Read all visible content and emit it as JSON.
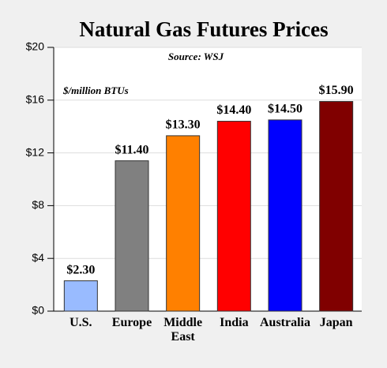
{
  "chart_data": {
    "type": "bar",
    "title": "Natural Gas Futures Prices",
    "subtitle": "Source: WSJ",
    "annotation": "$/million BTUs",
    "categories": [
      "U.S.",
      "Europe",
      "Middle East",
      "India",
      "Australia",
      "Japan"
    ],
    "values": [
      2.3,
      11.4,
      13.3,
      14.4,
      14.5,
      15.9
    ],
    "value_labels": [
      "$2.30",
      "$11.40",
      "$13.30",
      "$14.40",
      "$14.50",
      "$15.90"
    ],
    "colors": [
      "#99bbff",
      "#808080",
      "#ff8000",
      "#ff0000",
      "#0000ff",
      "#800000"
    ],
    "ylim": [
      0,
      20
    ],
    "yticks": [
      {
        "value": 0,
        "label": "$0"
      },
      {
        "value": 4,
        "label": "$4"
      },
      {
        "value": 8,
        "label": "$8"
      },
      {
        "value": 12,
        "label": "$12"
      },
      {
        "value": 16,
        "label": "$16"
      },
      {
        "value": 20,
        "label": "$20"
      }
    ],
    "grid": true
  }
}
